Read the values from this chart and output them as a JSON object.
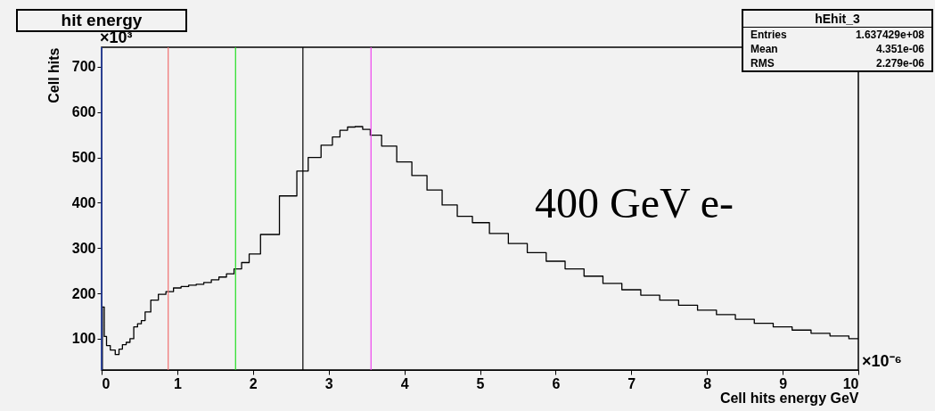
{
  "chart_data": {
    "type": "step",
    "title": "hit energy",
    "xlabel": "Cell hits energy   GeV",
    "ylabel": "Cell hits",
    "xlim": [
      0,
      10
    ],
    "xticks": [
      0,
      1,
      2,
      3,
      4,
      5,
      6,
      7,
      8,
      9,
      10
    ],
    "ylim": [
      31,
      743
    ],
    "yticks": [
      100,
      200,
      300,
      400,
      500,
      600,
      700
    ],
    "series": [
      {
        "color": "#000000",
        "x": [
          0.0,
          0.02,
          0.05,
          0.08,
          0.15,
          0.21,
          0.25,
          0.3,
          0.35,
          0.4,
          0.45,
          0.5,
          0.55,
          0.6,
          0.7,
          0.8,
          0.9,
          1.0,
          1.1,
          1.2,
          1.3,
          1.4,
          1.5,
          1.6,
          1.7,
          1.8,
          1.9,
          2.0,
          2.2,
          2.5,
          2.66,
          2.8,
          3.0,
          3.1,
          3.2,
          3.3,
          3.4,
          3.5,
          3.6,
          3.8,
          4.0,
          4.2,
          4.4,
          4.6,
          4.8,
          5.0,
          5.25,
          5.5,
          5.75,
          6.0,
          6.25,
          6.5,
          6.75,
          7.0,
          7.25,
          7.5,
          7.75,
          8.0,
          8.25,
          8.5,
          8.75,
          9.0,
          9.25,
          9.5,
          9.75,
          10.0
        ],
        "values": [
          31,
          170,
          105,
          85,
          75,
          65,
          77,
          87,
          92,
          100,
          126,
          133,
          140,
          159,
          185,
          198,
          204,
          212,
          215,
          218,
          220,
          224,
          230,
          236,
          243,
          254,
          268,
          287,
          330,
          415,
          470,
          500,
          527,
          545,
          560,
          567,
          568,
          562,
          549,
          525,
          490,
          460,
          428,
          395,
          370,
          356,
          332,
          310,
          290,
          271,
          254,
          238,
          222,
          208,
          196,
          185,
          174,
          163,
          153,
          143,
          134,
          126,
          119,
          112,
          106,
          100
        ]
      }
    ],
    "ref_lines": [
      {
        "axis": "x",
        "value": 0.0,
        "color": "#3355dd"
      },
      {
        "axis": "x",
        "value": 0.88,
        "color": "#f07070"
      },
      {
        "axis": "x",
        "value": 1.77,
        "color": "#22dd22"
      },
      {
        "axis": "x",
        "value": 2.66,
        "color": "#000000"
      },
      {
        "axis": "x",
        "value": 3.56,
        "color": "#ee44ee"
      }
    ],
    "annotations": [
      "×10³",
      "×10⁻⁶",
      "400 GeV e-",
      "hEhit_3",
      "Entries  1.637429e+08",
      "Mean  4.351e-06",
      "RMS  2.279e-06"
    ]
  }
}
